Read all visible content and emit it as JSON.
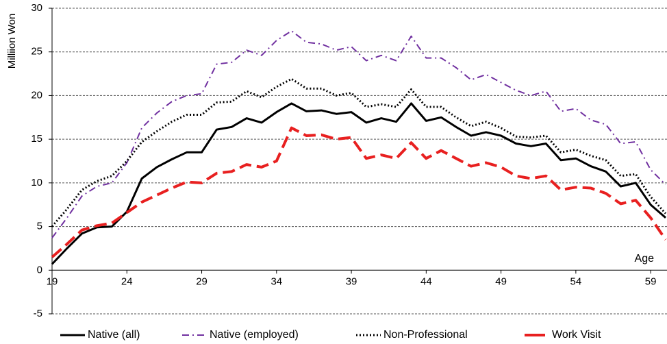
{
  "chart_data": {
    "type": "line",
    "y_label": "Milliion Won",
    "x_label": "Age",
    "x": [
      19,
      20,
      21,
      22,
      23,
      24,
      25,
      26,
      27,
      28,
      29,
      30,
      31,
      32,
      33,
      34,
      35,
      36,
      37,
      38,
      39,
      40,
      41,
      42,
      43,
      44,
      45,
      46,
      47,
      48,
      49,
      50,
      51,
      52,
      53,
      54,
      55,
      56,
      57,
      58,
      59,
      60
    ],
    "xlim": [
      19,
      60
    ],
    "xticks": [
      19,
      24,
      29,
      34,
      39,
      44,
      49,
      54,
      59
    ],
    "ylim": [
      -5,
      30
    ],
    "yticks": [
      -5,
      0,
      5,
      10,
      15,
      20,
      25,
      30
    ],
    "grid": true,
    "legend": "bottom",
    "series": [
      {
        "name": "Native (all)",
        "color": "#000000",
        "style": "solid",
        "values": [
          0.7,
          2.5,
          4.2,
          4.9,
          5.0,
          6.7,
          10.5,
          11.8,
          12.7,
          13.5,
          13.5,
          16.1,
          16.4,
          17.4,
          16.9,
          18.1,
          19.1,
          18.2,
          18.3,
          17.9,
          18.1,
          16.9,
          17.4,
          17.0,
          19.1,
          17.1,
          17.5,
          16.4,
          15.4,
          15.8,
          15.4,
          14.5,
          14.2,
          14.5,
          12.6,
          12.8,
          11.9,
          11.3,
          9.6,
          10.0,
          7.5,
          6.0
        ]
      },
      {
        "name": "Native (employed)",
        "color": "#7030a0",
        "style": "dashdot",
        "values": [
          3.7,
          6.0,
          8.5,
          9.6,
          10.0,
          12.3,
          16.3,
          18.0,
          19.3,
          20.0,
          20.2,
          23.6,
          23.8,
          25.2,
          24.6,
          26.3,
          27.4,
          26.1,
          25.9,
          25.2,
          25.6,
          24.0,
          24.6,
          24.0,
          26.8,
          24.3,
          24.3,
          23.2,
          21.8,
          22.4,
          21.5,
          20.6,
          20.0,
          20.5,
          18.2,
          18.5,
          17.2,
          16.7,
          14.5,
          14.7,
          11.5,
          9.8
        ]
      },
      {
        "name": "Non-Professional",
        "color": "#000000",
        "style": "dotted",
        "values": [
          5.0,
          7.0,
          9.2,
          10.2,
          10.8,
          12.5,
          14.7,
          15.9,
          17.0,
          17.8,
          17.8,
          19.2,
          19.3,
          20.5,
          19.8,
          21.0,
          21.9,
          20.8,
          20.8,
          20.0,
          20.3,
          18.7,
          19.0,
          18.7,
          20.7,
          18.7,
          18.7,
          17.5,
          16.5,
          17.0,
          16.3,
          15.3,
          15.2,
          15.4,
          13.5,
          13.8,
          13.1,
          12.6,
          10.8,
          11.0,
          8.4,
          6.5
        ]
      },
      {
        "name": "Work Visit",
        "color": "#e82020",
        "style": "dashed",
        "values": [
          1.5,
          3.0,
          4.6,
          5.1,
          5.4,
          6.6,
          7.8,
          8.6,
          9.4,
          10.1,
          10.0,
          11.1,
          11.3,
          12.1,
          11.8,
          12.5,
          16.3,
          15.4,
          15.5,
          15.0,
          15.2,
          12.8,
          13.2,
          12.8,
          14.6,
          12.8,
          13.7,
          12.8,
          11.9,
          12.3,
          11.8,
          10.8,
          10.5,
          10.8,
          9.2,
          9.5,
          9.4,
          8.8,
          7.6,
          8.0,
          6.0,
          3.5
        ]
      }
    ]
  }
}
